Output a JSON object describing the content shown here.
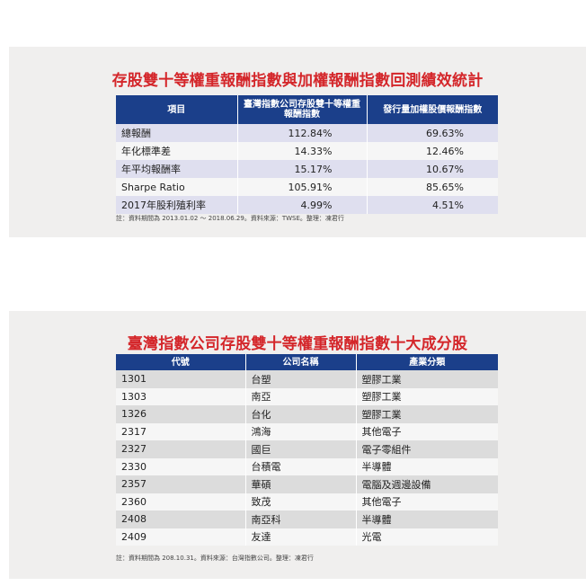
{
  "table1": {
    "title": "存股雙十等權重報酬指數與加權報酬指數回測績效統計",
    "headers": [
      "項目",
      "臺灣指數公司存股雙十等權重報酬指數",
      "發行量加權股價報酬指數"
    ],
    "rows": [
      [
        "總報酬",
        "112.84%",
        "69.63%"
      ],
      [
        "年化標準差",
        "14.33%",
        "12.46%"
      ],
      [
        "年平均報酬率",
        "15.17%",
        "10.67%"
      ],
      [
        "Sharpe Ratio",
        "105.91%",
        "85.65%"
      ],
      [
        "2017年股利殖利率",
        "4.99%",
        "4.51%"
      ]
    ],
    "note": "註：資料期間為 2013.01.02 ～ 2018.06.29。資料來源：TWSE。整理：凍君行"
  },
  "table2": {
    "title": "臺灣指數公司存股雙十等權重報酬指數十大成分股",
    "headers": [
      "代號",
      "公司名稱",
      "產業分類"
    ],
    "rows": [
      [
        "1301",
        "台塑",
        "塑膠工業"
      ],
      [
        "1303",
        "南亞",
        "塑膠工業"
      ],
      [
        "1326",
        "台化",
        "塑膠工業"
      ],
      [
        "2317",
        "鴻海",
        "其他電子"
      ],
      [
        "2327",
        "國巨",
        "電子零組件"
      ],
      [
        "2330",
        "台積電",
        "半導體"
      ],
      [
        "2357",
        "華碩",
        "電腦及週邊設備"
      ],
      [
        "2360",
        "致茂",
        "其他電子"
      ],
      [
        "2408",
        "南亞科",
        "半導體"
      ],
      [
        "2409",
        "友達",
        "光電"
      ]
    ],
    "note": "註：資料期間為 208.10.31。資料來源：台灣指數公司。整理：凍君行"
  },
  "colors": {
    "title": "#d4262a",
    "header_bg": "#1b3f8a",
    "panel_bg": "#f0efee"
  }
}
